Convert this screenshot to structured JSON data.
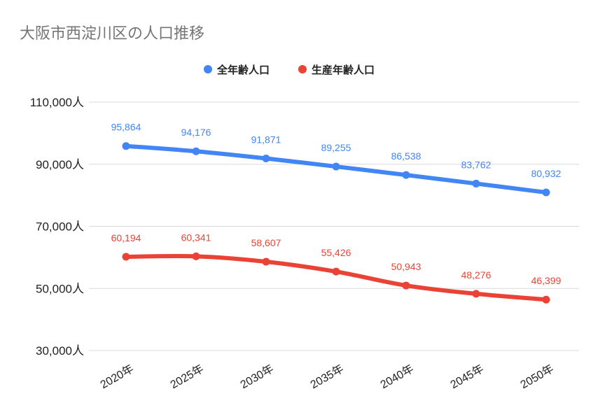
{
  "chart_data": {
    "type": "line",
    "title": "大阪市西淀川区の人口推移",
    "categories": [
      "2020年",
      "2025年",
      "2030年",
      "2035年",
      "2040年",
      "2045年",
      "2050年"
    ],
    "series": [
      {
        "name": "全年齢人口",
        "color": "#4285f4",
        "values": [
          95864,
          94176,
          91871,
          89255,
          86538,
          83762,
          80932
        ],
        "labels": [
          "95,864",
          "94,176",
          "91,871",
          "89,255",
          "86,538",
          "83,762",
          "80,932"
        ]
      },
      {
        "name": "生産年齢人口",
        "color": "#ea4335",
        "values": [
          60194,
          60341,
          58607,
          55426,
          50943,
          48276,
          46399
        ],
        "labels": [
          "60,194",
          "60,341",
          "58,607",
          "55,426",
          "50,943",
          "48,276",
          "46,399"
        ]
      }
    ],
    "ylim": [
      30000,
      110000
    ],
    "yticks": [
      110000,
      90000,
      70000,
      50000,
      30000
    ],
    "ytick_labels": [
      "110,000人",
      "90,000人",
      "70,000人",
      "50,000人",
      "30,000人"
    ],
    "grid": true,
    "legend_position": "top-center"
  }
}
